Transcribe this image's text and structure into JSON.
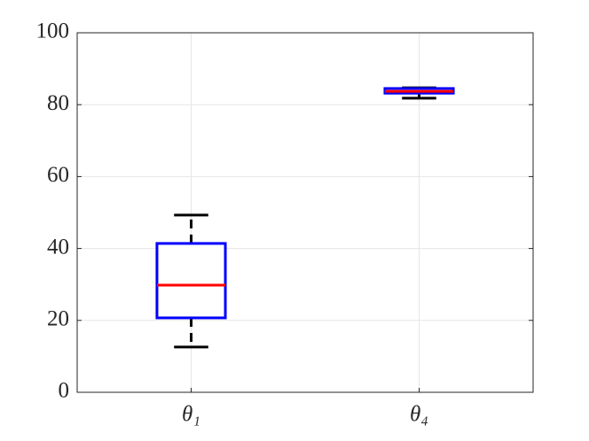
{
  "chart_data": {
    "type": "box",
    "categories": [
      "θ₁",
      "θ₄"
    ],
    "stats": [
      {
        "min": 12.6,
        "q1": 20.7,
        "median": 29.8,
        "q3": 41.4,
        "max": 49.3
      },
      {
        "min": 81.8,
        "q1": 83.2,
        "median": 83.7,
        "q3": 84.5,
        "max": 84.7
      }
    ],
    "box_color": "#0000ff",
    "median_color": "#ff0000",
    "whisker_color": "#000000",
    "ylim": [
      0,
      100
    ],
    "yticks": [
      0,
      20,
      40,
      60,
      80,
      100
    ],
    "grid": true
  }
}
